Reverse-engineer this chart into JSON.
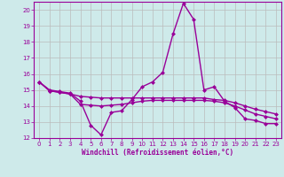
{
  "xlabel": "Windchill (Refroidissement éolien,°C)",
  "x": [
    0,
    1,
    2,
    3,
    4,
    5,
    6,
    7,
    8,
    9,
    10,
    11,
    12,
    13,
    14,
    15,
    16,
    17,
    18,
    19,
    20,
    21,
    22,
    23
  ],
  "line1": [
    15.5,
    15.0,
    14.9,
    14.8,
    14.3,
    12.8,
    12.2,
    13.6,
    13.7,
    14.4,
    15.2,
    15.5,
    16.1,
    18.5,
    20.4,
    19.4,
    15.0,
    15.2,
    14.3,
    13.9,
    13.2,
    13.1,
    12.9,
    12.9
  ],
  "line2": [
    15.5,
    14.95,
    14.85,
    14.75,
    14.6,
    14.55,
    14.5,
    14.5,
    14.5,
    14.5,
    14.5,
    14.5,
    14.5,
    14.5,
    14.5,
    14.5,
    14.5,
    14.4,
    14.35,
    14.2,
    14.0,
    13.8,
    13.65,
    13.5
  ],
  "line3": [
    15.5,
    14.95,
    14.85,
    14.75,
    14.1,
    14.05,
    14.0,
    14.05,
    14.1,
    14.2,
    14.3,
    14.35,
    14.35,
    14.35,
    14.35,
    14.35,
    14.35,
    14.3,
    14.2,
    14.0,
    13.75,
    13.5,
    13.35,
    13.2
  ],
  "color": "#990099",
  "bg_color": "#ceeaea",
  "grid_color": "#bbbbbb",
  "ylim": [
    12,
    20.5
  ],
  "xlim": [
    -0.5,
    23.5
  ],
  "yticks": [
    12,
    13,
    14,
    15,
    16,
    17,
    18,
    19,
    20
  ],
  "markersize": 2.5,
  "linewidth": 1.0
}
